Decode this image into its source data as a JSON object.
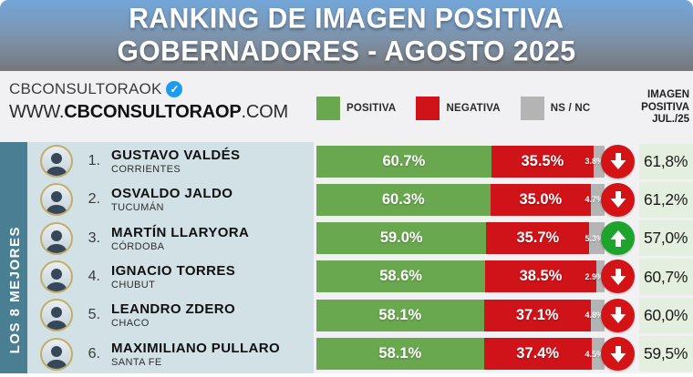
{
  "header": {
    "line1": "RANKING DE IMAGEN POSITIVA",
    "line2": "GOBERNADORES - AGOSTO 2025"
  },
  "source": {
    "account": "CBCONSULTORAOK",
    "verified_icon": "verified-badge",
    "check_glyph": "✓",
    "url_prefix": "WWW.",
    "url_bold": "CBCONSULTORAOP",
    "url_suffix": ".COM"
  },
  "legend": {
    "positiva": {
      "label": "POSITIVA",
      "color": "#6aa84f"
    },
    "negativa": {
      "label": "NEGATIVA",
      "color": "#cf1318"
    },
    "nsnc": {
      "label": "NS / NC",
      "color": "#b4b4b4"
    }
  },
  "prev_column_header": {
    "line1": "IMAGEN",
    "line2": "POSITIVA",
    "line3": "JUL./25"
  },
  "sidebar_label": "LOS 8 MEJORES",
  "colors": {
    "positiva": "#6aa84f",
    "negativa": "#cf1318",
    "nsnc": "#b4b4b4",
    "sidebar": "#4a7f93",
    "name_panel": "#d2e1e5",
    "prev_cell": "#e5efdf",
    "trend_down": "#d41317",
    "trend_up": "#1ea32c"
  },
  "chart_data": {
    "type": "bar",
    "stacked": true,
    "orientation": "horizontal",
    "title": "RANKING DE IMAGEN POSITIVA GOBERNADORES - AGOSTO 2025",
    "series_labels": [
      "POSITIVA",
      "NEGATIVA",
      "NS / NC"
    ],
    "xlim": [
      0,
      100
    ],
    "unit": "%",
    "rows": [
      {
        "rank": "1.",
        "name": "GUSTAVO VALDÉS",
        "province": "CORRIENTES",
        "positiva": 60.7,
        "negativa": 35.5,
        "ns_nc": 3.8,
        "trend": "down",
        "prev_label": "61,8%"
      },
      {
        "rank": "2.",
        "name": "OSVALDO JALDO",
        "province": "TUCUMÁN",
        "positiva": 60.3,
        "negativa": 35.0,
        "ns_nc": 4.7,
        "trend": "down",
        "prev_label": "61,2%"
      },
      {
        "rank": "3.",
        "name": "MARTÍN LLARYORA",
        "province": "CÓRDOBA",
        "positiva": 59.0,
        "negativa": 35.7,
        "ns_nc": 5.3,
        "trend": "up",
        "prev_label": "57,0%"
      },
      {
        "rank": "4.",
        "name": "IGNACIO TORRES",
        "province": "CHUBUT",
        "positiva": 58.6,
        "negativa": 38.5,
        "ns_nc": 2.9,
        "trend": "down",
        "prev_label": "60,7%"
      },
      {
        "rank": "5.",
        "name": "LEANDRO ZDERO",
        "province": "CHACO",
        "positiva": 58.1,
        "negativa": 37.1,
        "ns_nc": 4.8,
        "trend": "down",
        "prev_label": "60,0%"
      },
      {
        "rank": "6.",
        "name": "MAXIMILIANO PULLARO",
        "province": "SANTA FE",
        "positiva": 58.1,
        "negativa": 37.4,
        "ns_nc": 4.5,
        "trend": "down",
        "prev_label": "59,5%"
      }
    ]
  }
}
